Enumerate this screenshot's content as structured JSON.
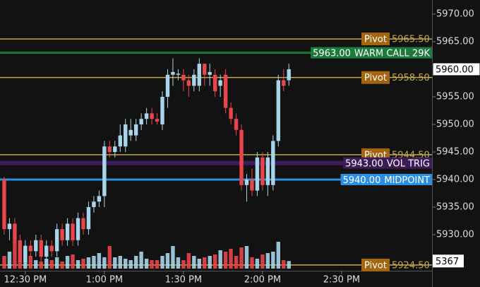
{
  "chart_data": {
    "type": "candlestick",
    "x": [
      742,
      744,
      746,
      748,
      750,
      752,
      754,
      756,
      758,
      760,
      762,
      764,
      766,
      768,
      770,
      772,
      774,
      776,
      778,
      780,
      782,
      784,
      786,
      788,
      790,
      792,
      794,
      796,
      798,
      800,
      802,
      804,
      806,
      808,
      810,
      812,
      814,
      816,
      818,
      820,
      822,
      824,
      826,
      828,
      830,
      832,
      834,
      836,
      838,
      840,
      842,
      844,
      846,
      848,
      850
    ],
    "open": [
      5940,
      5931,
      5932,
      5929,
      5925,
      5928,
      5927,
      5929,
      5926,
      5928,
      5927,
      5931,
      5929,
      5932,
      5929,
      5933,
      5931,
      5935,
      5936,
      5937,
      5946,
      5945,
      5946,
      5946,
      5948,
      5948,
      5950,
      5951,
      5952,
      5951,
      5950,
      5955,
      5959,
      5959,
      5959,
      5958,
      5957,
      5957,
      5961,
      5959,
      5959,
      5957,
      5959,
      5953,
      5951,
      5949,
      5939,
      5940,
      5938,
      5944,
      5939,
      5939,
      5947,
      5958,
      5958
    ],
    "high": [
      5940.5,
      5933,
      5933,
      5930,
      5929,
      5929,
      5930,
      5930,
      5929,
      5929,
      5932,
      5932,
      5933,
      5933,
      5934,
      5934,
      5936,
      5937,
      5938,
      5947,
      5947,
      5947,
      5950,
      5951,
      5951,
      5951,
      5952,
      5953,
      5953,
      5952,
      5956,
      5960,
      5962,
      5960,
      5960,
      5959,
      5960,
      5962,
      5961,
      5961,
      5960,
      5959,
      5960,
      5954,
      5952,
      5950,
      5941,
      5942,
      5945,
      5945,
      5945,
      5948,
      5959,
      5960,
      5961
    ],
    "low": [
      5930,
      5929,
      5928,
      5924,
      5924.5,
      5926,
      5926,
      5925,
      5925,
      5926,
      5926,
      5928,
      5928,
      5928,
      5928,
      5930,
      5930,
      5934,
      5935,
      5935,
      5944,
      5944,
      5945,
      5945,
      5947,
      5947,
      5949,
      5950,
      5950,
      5950,
      5949,
      5953,
      5957,
      5958,
      5956,
      5955,
      5956,
      5956,
      5957,
      5957,
      5955,
      5955,
      5952,
      5950,
      5948,
      5938,
      5936,
      5937,
      5937,
      5938,
      5937,
      5938,
      5946,
      5956,
      5957
    ],
    "close": [
      5931,
      5932,
      5929,
      5925,
      5928,
      5927,
      5929,
      5926,
      5928,
      5927,
      5931,
      5929,
      5932,
      5929,
      5933,
      5931,
      5935,
      5936,
      5937,
      5946,
      5945,
      5946,
      5948,
      5950,
      5949,
      5950,
      5951,
      5952,
      5951,
      5950.5,
      5955,
      5959,
      5959.5,
      5959.2,
      5958,
      5957,
      5959,
      5961,
      5959,
      5959.5,
      5956,
      5958,
      5953,
      5951,
      5949,
      5939,
      5940,
      5938,
      5944,
      5939,
      5944,
      5947,
      5958,
      5957,
      5960
    ],
    "volume": [
      9000,
      12000,
      20000,
      15000,
      14000,
      9000,
      6000,
      5000,
      7000,
      6000,
      8000,
      5000,
      9000,
      10000,
      6000,
      7000,
      8000,
      9000,
      11000,
      8000,
      16000,
      8000,
      9000,
      7000,
      6000,
      9000,
      12000,
      7000,
      6000,
      6000,
      9000,
      11000,
      16000,
      8000,
      6000,
      11000,
      9000,
      7000,
      8000,
      9000,
      10000,
      13000,
      12000,
      14000,
      9000,
      15000,
      16000,
      8000,
      7000,
      10000,
      11000,
      12000,
      19000,
      6000,
      5367
    ],
    "vlim": [
      0,
      40000
    ],
    "last_volume": 5367,
    "up_color": "#a9d5ea",
    "down_color": "#e8464a",
    "xlim": [
      740.4,
      904.3
    ],
    "xticks": [
      {
        "value": 750,
        "label": "12:30 PM"
      },
      {
        "value": 780,
        "label": "1:00 PM"
      },
      {
        "value": 810,
        "label": "1:30 PM"
      },
      {
        "value": 840,
        "label": "2:00 PM"
      },
      {
        "value": 870,
        "label": "2:30 PM"
      }
    ],
    "ylim": [
      5923.46,
      5972.56
    ],
    "yticks": [
      {
        "value": 5930,
        "label": "5930.00"
      },
      {
        "value": 5935,
        "label": "5935.00"
      },
      {
        "value": 5940,
        "label": "5940.00"
      },
      {
        "value": 5945,
        "label": "5945.00"
      },
      {
        "value": 5950,
        "label": "5950.00"
      },
      {
        "value": 5955,
        "label": "5955.00"
      },
      {
        "value": 5960,
        "label": "5960.00"
      },
      {
        "value": 5965,
        "label": "5965.00"
      },
      {
        "value": 5970,
        "label": "5970.00"
      }
    ],
    "last_price": {
      "value": 5960,
      "label": "5960.00"
    },
    "levels": [
      {
        "name": "Pivot",
        "value": 5965.5,
        "value_label": "5965.50",
        "color": "#c2a94e",
        "style": "pivot"
      },
      {
        "name": "WARM CALL 29K",
        "value": 5963,
        "value_label": "5963.00",
        "color": "#1d7a3c",
        "style": "tag"
      },
      {
        "name": "Pivot",
        "value": 5958.5,
        "value_label": "5958.50",
        "color": "#c2a94e",
        "style": "pivot"
      },
      {
        "name": "Pivot",
        "value": 5944.5,
        "value_label": "5944.50",
        "color": "#c2a94e",
        "style": "pivot"
      },
      {
        "name": "VOL TRIG",
        "value": 5943,
        "value_label": "5943.00",
        "color": "#3e1c5a",
        "style": "tag"
      },
      {
        "name": "MIDPOINT",
        "value": 5940,
        "value_label": "5940.00",
        "color": "#2a8fe3",
        "style": "tag"
      },
      {
        "name": "Pivot",
        "value": 5924.5,
        "value_label": "5924.50",
        "color": "#c2a94e",
        "style": "pivot"
      }
    ]
  }
}
